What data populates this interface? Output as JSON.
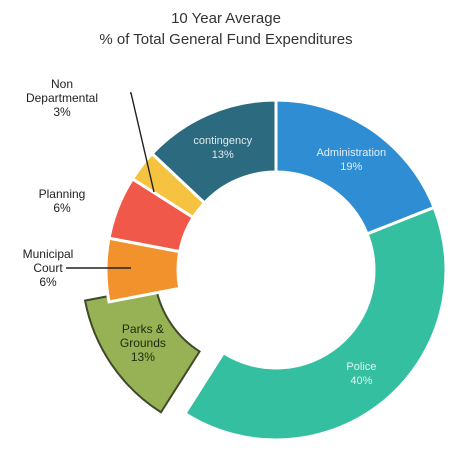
{
  "chart_data": {
    "type": "pie",
    "title": "10 Year Average",
    "subtitle": "% of Total General Fund Expenditures",
    "slices": [
      {
        "label": "Administration",
        "value": 19,
        "display": "19%",
        "color": "#2f8ed3",
        "label_placement": "inside",
        "exploded": false
      },
      {
        "label": "Police",
        "value": 40,
        "display": "40%",
        "color": "#33bfa0",
        "label_placement": "inside",
        "exploded": false
      },
      {
        "label": "Parks & Grounds",
        "value": 13,
        "display": "13%",
        "color": "#96b255",
        "label_placement": "inside",
        "exploded": true
      },
      {
        "label": "Municipal Court",
        "value": 6,
        "display": "6%",
        "color": "#f2922c",
        "label_placement": "outside",
        "exploded": false
      },
      {
        "label": "Planning",
        "value": 6,
        "display": "6%",
        "color": "#f0594a",
        "label_placement": "outside",
        "exploded": false
      },
      {
        "label": "Non Departmental",
        "value": 3,
        "display": "3%",
        "color": "#f6c341",
        "label_placement": "outside",
        "exploded": false
      },
      {
        "label": "contingency",
        "value": 13,
        "display": "13%",
        "color": "#2c6a80",
        "label_placement": "inside",
        "exploded": false
      }
    ]
  }
}
